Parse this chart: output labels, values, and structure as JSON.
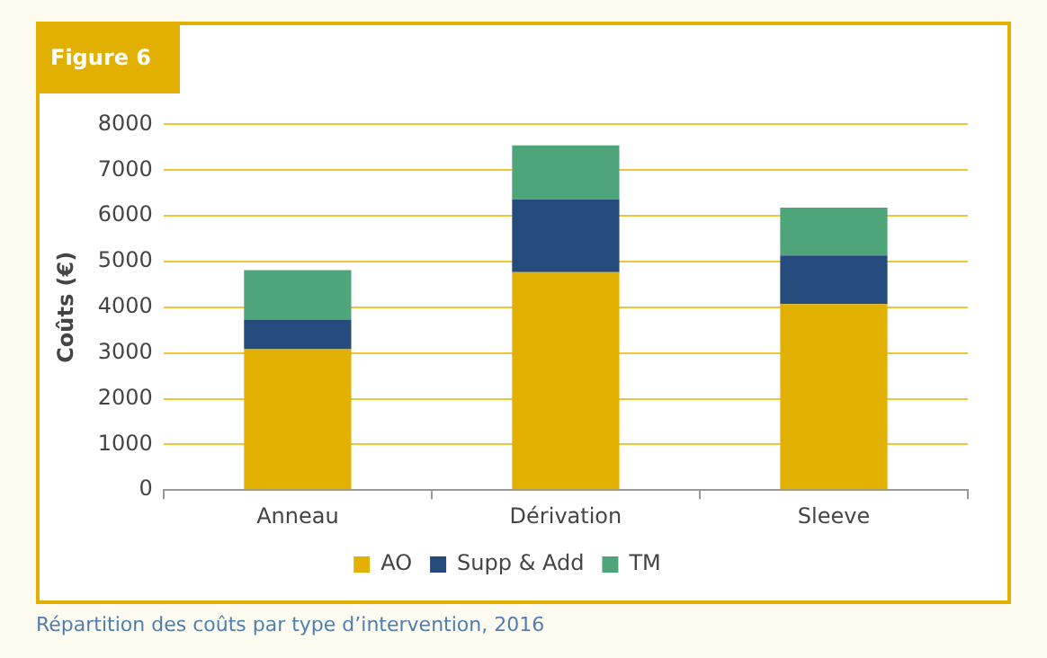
{
  "chart_data": {
    "type": "bar",
    "title": "Figure 6",
    "ylabel": "Coûts (€)",
    "categories": [
      "Anneau",
      "Dérivation",
      "Sleeve"
    ],
    "stacked": true,
    "series": [
      {
        "name": "AO",
        "color": "#e2b000",
        "values": [
          3080,
          4770,
          4070
        ]
      },
      {
        "name": "Supp & Add",
        "color": "#254a7c",
        "values": [
          650,
          1590,
          1060
        ]
      },
      {
        "name": "TM",
        "color": "#4fa57a",
        "values": [
          1080,
          1180,
          1050
        ]
      }
    ],
    "ylim": [
      0,
      8000
    ],
    "yticks": [
      0,
      1000,
      2000,
      3000,
      4000,
      5000,
      6000,
      7000,
      8000
    ],
    "grid": "y",
    "legend": "bottom",
    "annotations": [
      "Répartition des coûts par type d’intervention, 2016"
    ]
  }
}
